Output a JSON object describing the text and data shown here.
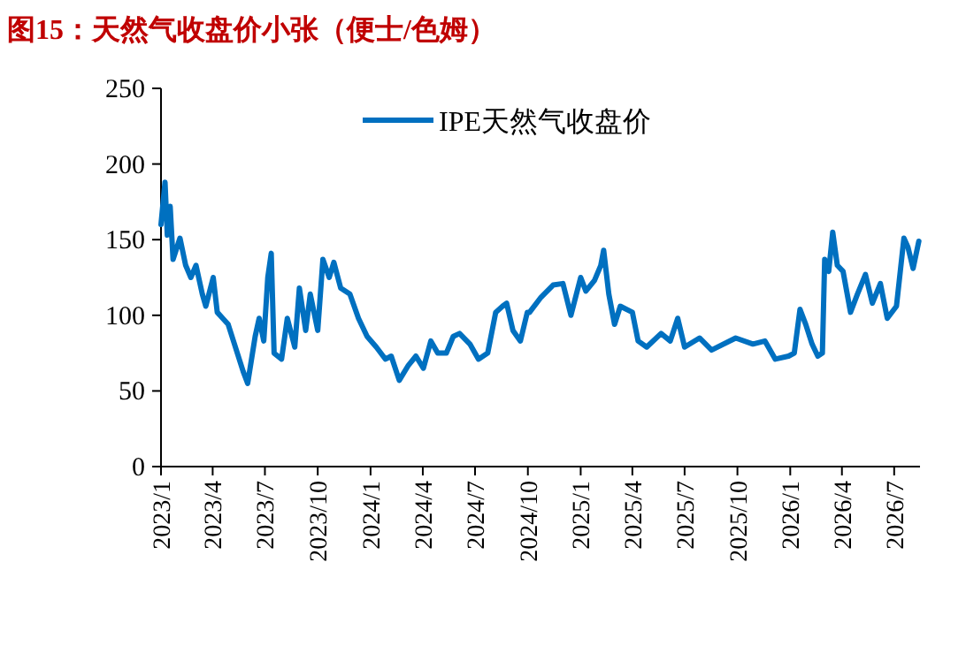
{
  "chart_data": {
    "type": "line",
    "title": "图15：天然气收盘价小张（便士/色姆）",
    "xlim": [
      "2023-01-01",
      "2026-08-15"
    ],
    "ylim": [
      0,
      250
    ],
    "yticks": [
      0,
      50,
      100,
      150,
      200,
      250
    ],
    "xticks": [
      {
        "value": "2023-01-01",
        "label": "2023/1"
      },
      {
        "value": "2023-04-01",
        "label": "2023/4"
      },
      {
        "value": "2023-07-01",
        "label": "2023/7"
      },
      {
        "value": "2023-10-01",
        "label": "2023/10"
      },
      {
        "value": "2024-01-01",
        "label": "2024/1"
      },
      {
        "value": "2024-04-01",
        "label": "2024/4"
      },
      {
        "value": "2024-07-01",
        "label": "2024/7"
      },
      {
        "value": "2024-10-01",
        "label": "2024/10"
      },
      {
        "value": "2025-01-01",
        "label": "2025/1"
      },
      {
        "value": "2025-04-01",
        "label": "2025/4"
      },
      {
        "value": "2025-07-01",
        "label": "2025/7"
      },
      {
        "value": "2025-10-01",
        "label": "2025/10"
      },
      {
        "value": "2026-01-01",
        "label": "2026/1"
      },
      {
        "value": "2026-04-01",
        "label": "2026/4"
      },
      {
        "value": "2026-07-01",
        "label": "2026/7"
      }
    ],
    "grid": false,
    "legend": "top",
    "line_style": "solid",
    "marker": "none",
    "x": [
      "2023-01-01",
      "2023-01-08",
      "2023-01-12",
      "2023-01-17",
      "2023-01-22",
      "2023-02-03",
      "2023-02-13",
      "2023-02-22",
      "2023-03-03",
      "2023-03-14",
      "2023-03-20",
      "2023-04-02",
      "2023-04-09",
      "2023-04-28",
      "2023-05-24",
      "2023-06-01",
      "2023-06-14",
      "2023-06-21",
      "2023-06-29",
      "2023-07-06",
      "2023-07-12",
      "2023-07-17",
      "2023-07-30",
      "2023-08-09",
      "2023-08-22",
      "2023-08-30",
      "2023-09-10",
      "2023-09-18",
      "2023-10-01",
      "2023-10-10",
      "2023-10-21",
      "2023-10-29",
      "2023-11-10",
      "2023-11-26",
      "2023-12-11",
      "2023-12-26",
      "2024-01-11",
      "2024-01-27",
      "2024-02-06",
      "2024-02-20",
      "2024-03-07",
      "2024-03-20",
      "2024-04-02",
      "2024-04-15",
      "2024-04-27",
      "2024-05-12",
      "2024-05-24",
      "2024-06-04",
      "2024-06-22",
      "2024-07-07",
      "2024-07-23",
      "2024-08-06",
      "2024-08-18",
      "2024-08-25",
      "2024-09-05",
      "2024-09-18",
      "2024-09-30",
      "2024-10-04",
      "2024-10-24",
      "2024-11-14",
      "2024-12-01",
      "2024-12-15",
      "2025-01-01",
      "2025-01-10",
      "2025-01-25",
      "2025-02-05",
      "2025-02-10",
      "2025-02-19",
      "2025-03-01",
      "2025-03-11",
      "2025-04-01",
      "2025-04-11",
      "2025-04-26",
      "2025-05-21",
      "2025-06-06",
      "2025-06-19",
      "2025-07-01",
      "2025-07-27",
      "2025-08-17",
      "2025-09-28",
      "2025-10-28",
      "2025-11-18",
      "2025-12-06",
      "2025-12-29",
      "2026-01-08",
      "2026-01-18",
      "2026-01-28",
      "2026-02-08",
      "2026-02-18",
      "2026-02-26",
      "2026-03-02",
      "2026-03-09",
      "2026-03-16",
      "2026-03-24",
      "2026-04-03",
      "2026-04-16",
      "2026-04-28",
      "2026-05-12",
      "2026-05-24",
      "2026-06-07",
      "2026-06-19",
      "2026-07-05",
      "2026-07-18",
      "2026-07-25",
      "2026-08-03",
      "2026-08-13"
    ],
    "series": [
      {
        "name": "IPE天然气收盘价",
        "color": "#0070c0",
        "values": [
          160,
          188,
          153,
          172,
          137,
          151,
          133,
          125,
          133,
          114,
          106,
          125,
          102,
          94,
          63,
          55,
          86,
          98,
          83,
          125,
          141,
          75,
          71,
          98,
          79,
          118,
          90,
          114,
          90,
          137,
          125,
          135,
          118,
          114,
          98,
          86,
          79,
          71,
          73,
          57,
          67,
          73,
          65,
          83,
          75,
          75,
          86,
          88,
          81,
          71,
          75,
          102,
          106,
          108,
          90,
          83,
          102,
          102,
          112,
          120,
          121,
          100,
          125,
          116,
          123,
          133,
          143,
          114,
          94,
          106,
          102,
          83,
          79,
          88,
          83,
          98,
          79,
          85,
          77,
          85,
          81,
          83,
          71,
          73,
          75,
          104,
          94,
          81,
          73,
          75,
          137,
          129,
          155,
          133,
          129,
          102,
          114,
          127,
          108,
          121,
          98,
          106,
          151,
          145,
          131,
          149
        ]
      }
    ]
  }
}
